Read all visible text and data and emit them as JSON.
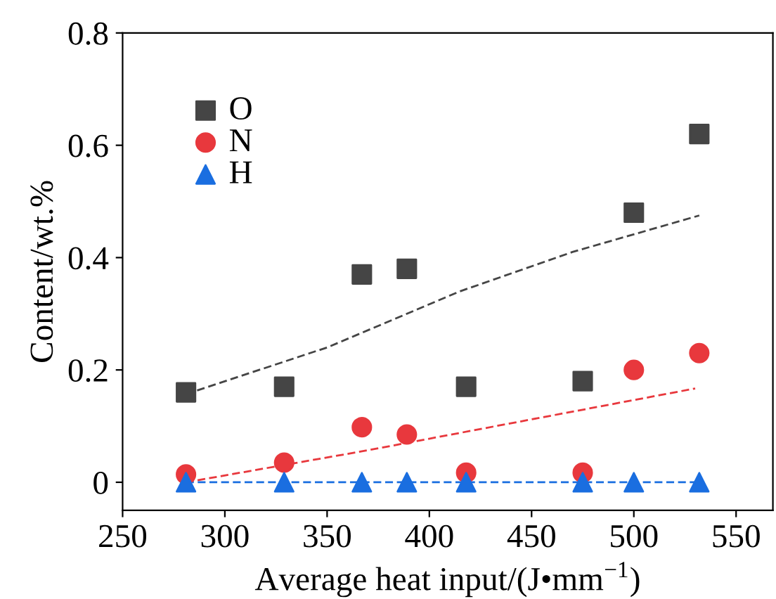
{
  "chart_data": {
    "type": "scatter",
    "xlabel": "Average heat input/(J•mm$^{−1}$)",
    "ylabel": "Content/wt.%",
    "xlim": [
      250,
      568
    ],
    "xticks": [
      250,
      300,
      350,
      400,
      450,
      500,
      550
    ],
    "ylim": [
      -0.05,
      0.8
    ],
    "yticks": [
      0,
      0.2,
      0.4,
      0.6,
      0.8
    ],
    "grid": false,
    "legend": "top left",
    "x": [
      281,
      329,
      367,
      389,
      418,
      475,
      500,
      532
    ],
    "series": [
      {
        "name": "O",
        "color": "#454545",
        "marker": "square",
        "values": [
          0.16,
          0.17,
          0.37,
          0.38,
          0.17,
          0.18,
          0.48,
          0.62
        ]
      },
      {
        "name": "N",
        "color": "#e8383d",
        "marker": "circle",
        "values": [
          0.014,
          0.035,
          0.098,
          0.085,
          0.017,
          0.017,
          0.2,
          0.23
        ]
      },
      {
        "name": "H",
        "color": "#1a6ee0",
        "marker": "triangle",
        "values": [
          0,
          0,
          0,
          0,
          0,
          0,
          0,
          0
        ]
      },
      {
        "type": "line",
        "color": "#454545",
        "line_style": "dashed",
        "marker": "none",
        "x": [
          281,
          350,
          415,
          470,
          532
        ],
        "values": [
          0.157,
          0.24,
          0.34,
          0.41,
          0.475
        ]
      },
      {
        "type": "line",
        "color": "#e8383d",
        "line_style": "dashed",
        "marker": "none",
        "x": [
          281,
          370,
          450,
          530
        ],
        "values": [
          0.0,
          0.057,
          0.112,
          0.167
        ]
      },
      {
        "type": "line",
        "color": "#1a6ee0",
        "line_style": "dashed",
        "marker": "none",
        "x": [
          281,
          532
        ],
        "values": [
          0,
          0
        ]
      }
    ]
  }
}
